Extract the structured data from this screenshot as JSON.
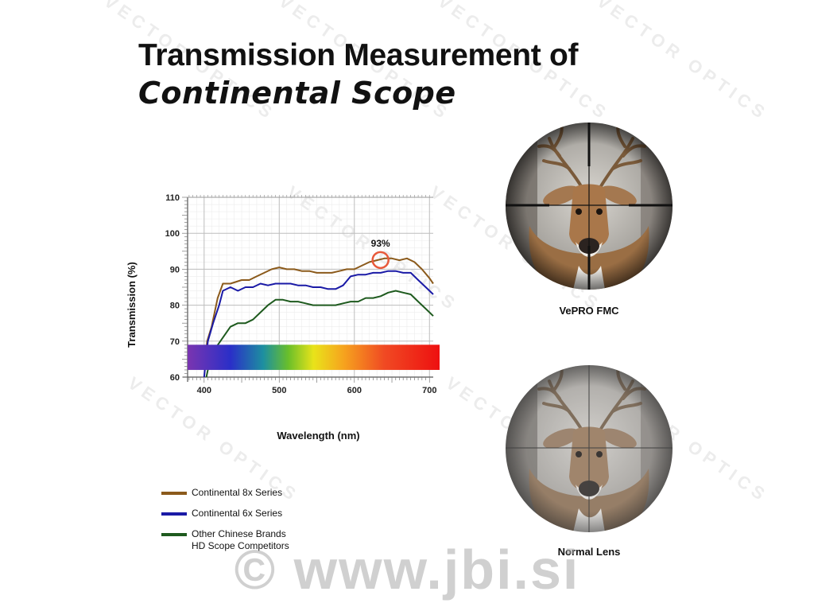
{
  "title": {
    "line1": "Transmission Measurement of",
    "line2": "Continental Scope"
  },
  "chart_data": {
    "type": "line",
    "xlabel": "Wavelength (nm)",
    "ylabel": "Transmission (%)",
    "xlim": [
      378,
      705
    ],
    "ylim": [
      60,
      110
    ],
    "xticks": [
      400,
      500,
      600,
      700
    ],
    "yticks": [
      60,
      70,
      80,
      90,
      100,
      110
    ],
    "grid": true,
    "legend": "bottom-left",
    "annotation": {
      "text": "93%",
      "x": 638,
      "y": 93
    },
    "spectrum_band": {
      "y_range": [
        62,
        69
      ]
    },
    "series": [
      {
        "name": "Continental 8x Series",
        "color": "#8B5A1B",
        "points": [
          [
            400,
            62
          ],
          [
            404,
            70
          ],
          [
            410,
            74
          ],
          [
            418,
            82
          ],
          [
            425,
            86
          ],
          [
            435,
            86
          ],
          [
            450,
            87
          ],
          [
            460,
            87
          ],
          [
            470,
            88
          ],
          [
            480,
            89
          ],
          [
            490,
            90
          ],
          [
            500,
            90.5
          ],
          [
            510,
            90
          ],
          [
            520,
            90
          ],
          [
            530,
            89.5
          ],
          [
            540,
            89.5
          ],
          [
            550,
            89
          ],
          [
            560,
            89
          ],
          [
            570,
            89
          ],
          [
            580,
            89.5
          ],
          [
            590,
            90
          ],
          [
            600,
            90
          ],
          [
            610,
            91
          ],
          [
            620,
            92
          ],
          [
            630,
            92.5
          ],
          [
            640,
            93
          ],
          [
            650,
            93
          ],
          [
            660,
            92.5
          ],
          [
            670,
            93
          ],
          [
            680,
            92
          ],
          [
            690,
            90
          ],
          [
            700,
            87.5
          ],
          [
            705,
            86
          ]
        ]
      },
      {
        "name": "Continental 6x Series",
        "color": "#1A1AA6",
        "points": [
          [
            400,
            60
          ],
          [
            405,
            70
          ],
          [
            412,
            75
          ],
          [
            420,
            80
          ],
          [
            425,
            84
          ],
          [
            435,
            85
          ],
          [
            445,
            84
          ],
          [
            455,
            85
          ],
          [
            465,
            85
          ],
          [
            475,
            86
          ],
          [
            485,
            85.5
          ],
          [
            495,
            86
          ],
          [
            505,
            86
          ],
          [
            515,
            86
          ],
          [
            525,
            85.5
          ],
          [
            535,
            85.5
          ],
          [
            545,
            85
          ],
          [
            555,
            85
          ],
          [
            565,
            84.5
          ],
          [
            575,
            84.5
          ],
          [
            585,
            85.5
          ],
          [
            595,
            88
          ],
          [
            605,
            88.5
          ],
          [
            615,
            88.5
          ],
          [
            625,
            89
          ],
          [
            635,
            89
          ],
          [
            645,
            89.5
          ],
          [
            655,
            89.5
          ],
          [
            665,
            89
          ],
          [
            675,
            89
          ],
          [
            685,
            87
          ],
          [
            695,
            85
          ],
          [
            705,
            83
          ]
        ]
      },
      {
        "name": "Other Chinese Brands\nHD Scope Competitors",
        "color": "#1E5A1E",
        "points": [
          [
            403,
            60
          ],
          [
            408,
            65
          ],
          [
            415,
            68
          ],
          [
            425,
            71
          ],
          [
            435,
            74
          ],
          [
            445,
            75
          ],
          [
            455,
            75
          ],
          [
            465,
            76
          ],
          [
            475,
            78
          ],
          [
            485,
            80
          ],
          [
            495,
            81.5
          ],
          [
            505,
            81.5
          ],
          [
            515,
            81
          ],
          [
            525,
            81
          ],
          [
            535,
            80.5
          ],
          [
            545,
            80
          ],
          [
            555,
            80
          ],
          [
            565,
            80
          ],
          [
            575,
            80
          ],
          [
            585,
            80.5
          ],
          [
            595,
            81
          ],
          [
            605,
            81
          ],
          [
            615,
            82
          ],
          [
            625,
            82
          ],
          [
            635,
            82.5
          ],
          [
            645,
            83.5
          ],
          [
            655,
            84
          ],
          [
            665,
            83.5
          ],
          [
            675,
            83
          ],
          [
            685,
            81
          ],
          [
            695,
            79
          ],
          [
            705,
            77
          ]
        ]
      }
    ]
  },
  "scopes": [
    {
      "label": "VePRO FMC"
    },
    {
      "label": "Normal Lens"
    }
  ],
  "watermark": {
    "main": "© www.jbi.si",
    "background": "VECTOR OPTICS"
  }
}
